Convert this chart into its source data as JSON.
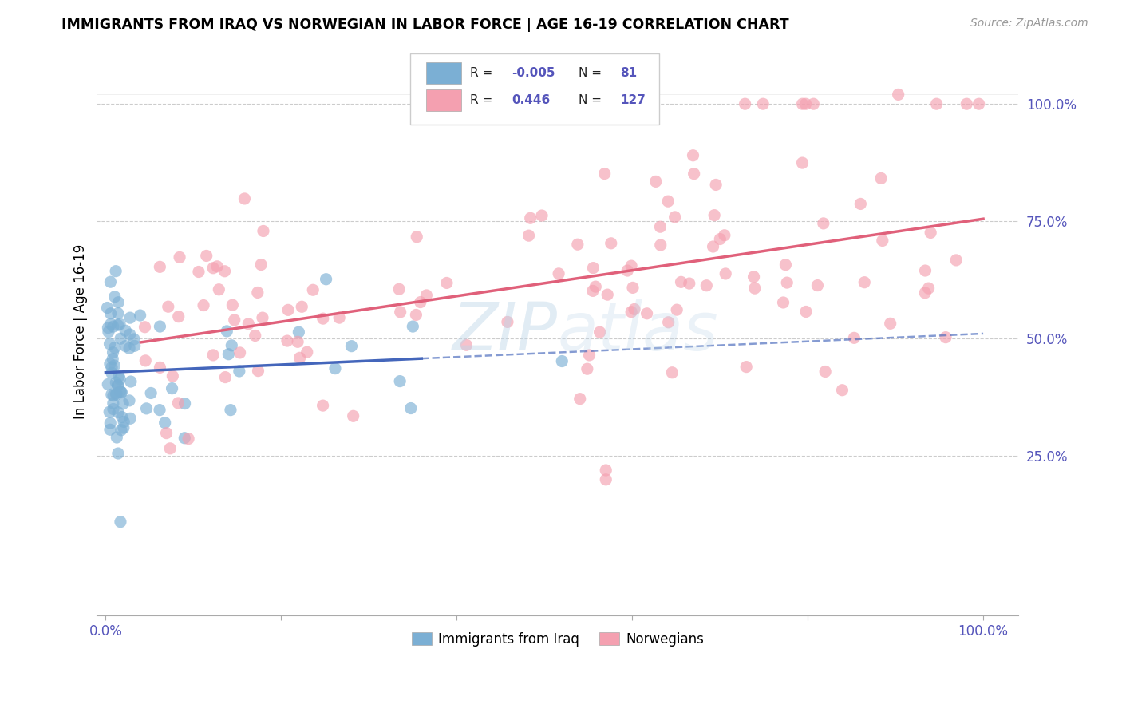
{
  "title": "IMMIGRANTS FROM IRAQ VS NORWEGIAN IN LABOR FORCE | AGE 16-19 CORRELATION CHART",
  "source": "Source: ZipAtlas.com",
  "ylabel": "In Labor Force | Age 16-19",
  "color_iraq": "#7BAFD4",
  "color_norway": "#F4A0B0",
  "color_iraq_line": "#4466BB",
  "color_norway_line": "#E0607A",
  "R_iraq": -0.005,
  "N_iraq": 81,
  "R_norway": 0.446,
  "N_norway": 127,
  "legend_label_iraq": "Immigrants from Iraq",
  "legend_label_norway": "Norwegians",
  "watermark_text": "ZIPatlas",
  "tick_color": "#5555BB",
  "grid_color": "#CCCCCC"
}
